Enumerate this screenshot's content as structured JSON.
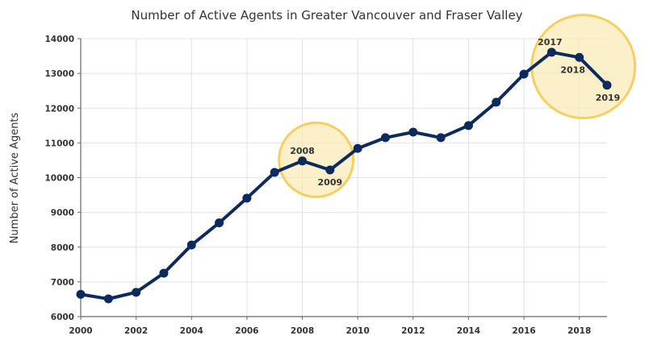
{
  "chart_data": {
    "type": "line",
    "title": "Number of Active Agents in Greater Vancouver and Fraser Valley",
    "xlabel": "",
    "ylabel": "Number of Active Agents",
    "x": [
      2000,
      2001,
      2002,
      2003,
      2004,
      2005,
      2006,
      2007,
      2008,
      2009,
      2010,
      2011,
      2012,
      2013,
      2014,
      2015,
      2016,
      2017,
      2018,
      2019
    ],
    "values": [
      6640,
      6510,
      6700,
      7250,
      8060,
      8700,
      9410,
      10150,
      10480,
      10220,
      10840,
      11150,
      11310,
      11150,
      11500,
      12170,
      12980,
      13610,
      13460,
      12660
    ],
    "xlim": [
      2000,
      2019
    ],
    "ylim": [
      6000,
      14000
    ],
    "x_ticks": [
      "2000",
      "2002",
      "2004",
      "2006",
      "2008",
      "2010",
      "2012",
      "2014",
      "2016",
      "2018"
    ],
    "y_ticks": [
      "6000",
      "7000",
      "8000",
      "9000",
      "10000",
      "11000",
      "12000",
      "13000",
      "14000"
    ],
    "grid": true,
    "line_color": "#0d2a5e",
    "highlight_color": "#f5d060",
    "annotations": [
      {
        "label": "2008",
        "year": 2008
      },
      {
        "label": "2009",
        "year": 2009
      },
      {
        "label": "2017",
        "year": 2017
      },
      {
        "label": "2018",
        "year": 2018
      },
      {
        "label": "2019",
        "year": 2019
      }
    ],
    "highlights": [
      {
        "years": [
          2008,
          2009
        ]
      },
      {
        "years": [
          2017,
          2018,
          2019
        ]
      }
    ]
  }
}
